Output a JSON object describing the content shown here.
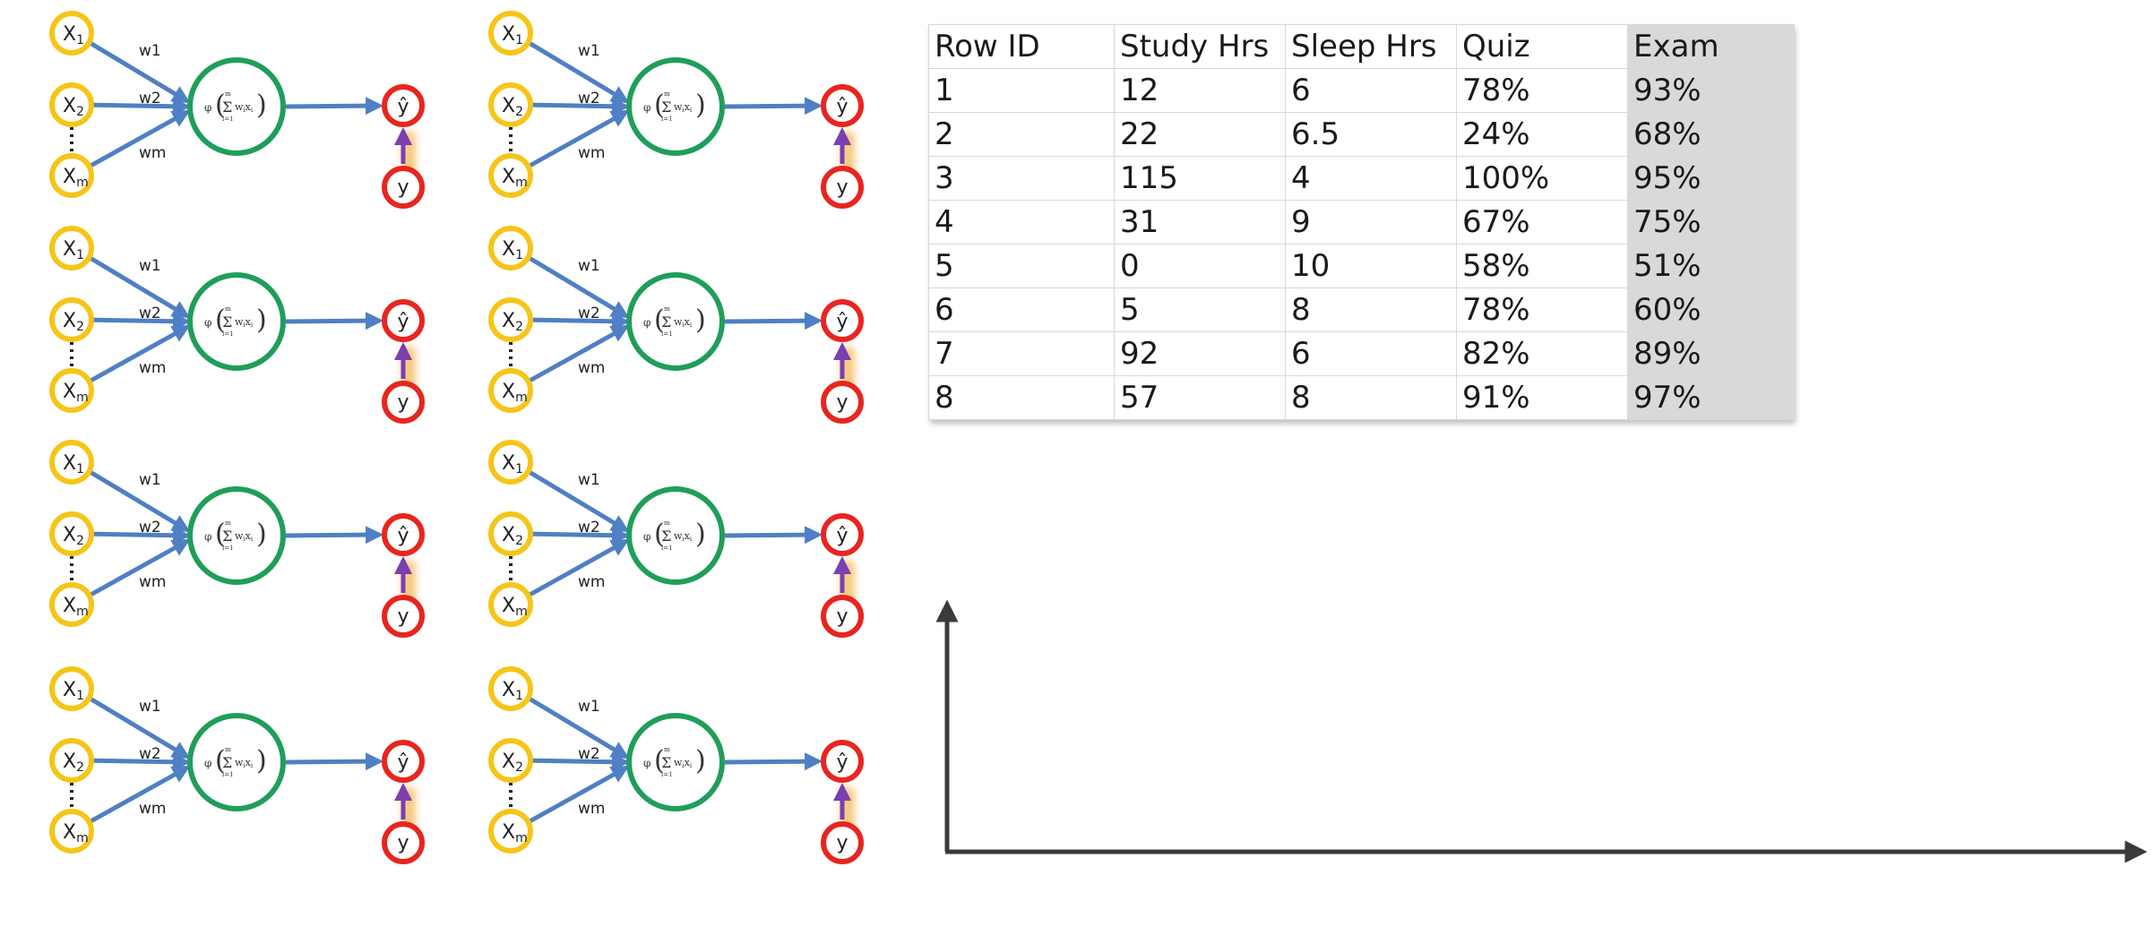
{
  "perceptron": {
    "inputs": [
      {
        "base": "X",
        "sub": "1"
      },
      {
        "base": "X",
        "sub": "2"
      },
      {
        "base": "X",
        "sub": "m"
      }
    ],
    "weights": [
      "w1",
      "w2",
      "wm"
    ],
    "output_label": "ŷ",
    "actual_label": "y",
    "formula": {
      "phi": "φ",
      "sigma": "Σ",
      "upper": "m",
      "lower": "i=1",
      "term": "w",
      "term_sub": "i",
      "term2": "x",
      "term2_sub": "i"
    },
    "panel_count": 8
  },
  "colors": {
    "input_node": "#f5c518",
    "neuron": "#1f9e5a",
    "output_node": "#e8251f",
    "edge": "#4f7fc4",
    "feedback_arrow": "#7a3fb0",
    "feedback_glow": "#f3b24a",
    "axis": "#3a3a3a",
    "exam_column_bg": "#d9d9d9"
  },
  "table": {
    "columns": [
      "Row ID",
      "Study Hrs",
      "Sleep Hrs",
      "Quiz",
      "Exam"
    ],
    "rows": [
      [
        "1",
        "12",
        "6",
        "78%",
        "93%"
      ],
      [
        "2",
        "22",
        "6.5",
        "24%",
        "68%"
      ],
      [
        "3",
        "115",
        "4",
        "100%",
        "95%"
      ],
      [
        "4",
        "31",
        "9",
        "67%",
        "75%"
      ],
      [
        "5",
        "0",
        "10",
        "58%",
        "51%"
      ],
      [
        "6",
        "5",
        "8",
        "78%",
        "60%"
      ],
      [
        "7",
        "92",
        "6",
        "82%",
        "89%"
      ],
      [
        "8",
        "57",
        "8",
        "91%",
        "97%"
      ]
    ]
  }
}
